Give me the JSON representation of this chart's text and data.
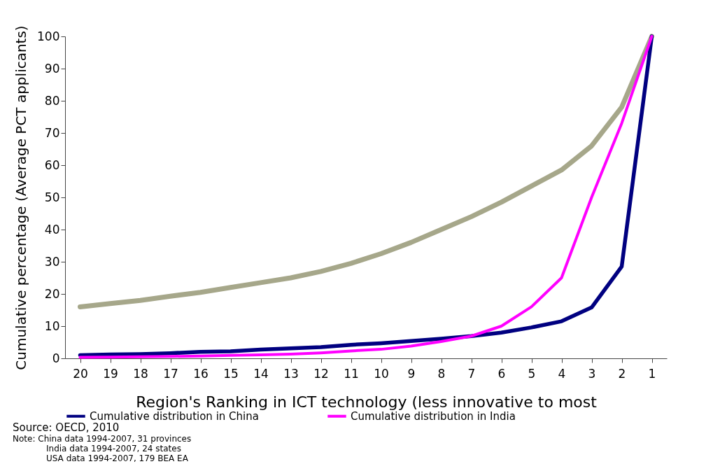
{
  "chart_data": {
    "type": "line",
    "ylabel": "Cumulative percentage (Average PCT applicants)",
    "xlabel": "Region's Ranking in ICT technology (less innovative to most",
    "categories": [
      "20",
      "19",
      "18",
      "17",
      "16",
      "15",
      "14",
      "13",
      "12",
      "11",
      "10",
      "9",
      "8",
      "7",
      "6",
      "5",
      "4",
      "3",
      "2",
      "1"
    ],
    "series": [
      {
        "color": "#a6a78a",
        "values": [
          16,
          17,
          18,
          19.3,
          20.5,
          22,
          23.5,
          25,
          27,
          29.5,
          32.5,
          36,
          40,
          44,
          48.5,
          53.5,
          58.5,
          66,
          78,
          100
        ]
      },
      {
        "name": "Cumulative distribution in China",
        "color": "#000080",
        "values": [
          1,
          1.2,
          1.3,
          1.6,
          2,
          2.2,
          2.7,
          3.1,
          3.5,
          4.2,
          4.7,
          5.4,
          6.1,
          6.9,
          8,
          9.6,
          11.5,
          15.8,
          28.5,
          100
        ]
      },
      {
        "name": "Cumulative distribution in India",
        "color": "#ff00ff",
        "values": [
          0.3,
          0.4,
          0.5,
          0.6,
          0.7,
          0.9,
          1.1,
          1.3,
          1.7,
          2.3,
          2.8,
          3.8,
          5.2,
          6.9,
          10,
          16,
          25,
          50,
          73,
          100
        ]
      }
    ],
    "ylim": [
      0,
      100
    ],
    "yticks": [
      0,
      10,
      20,
      30,
      40,
      50,
      60,
      70,
      80,
      90,
      100
    ],
    "grid": false,
    "legend": "bottom",
    "annotations": [
      "Source: OECD, 2010",
      "Note: China data 1994-2007, 31 provinces",
      "India data 1994-2007, 24 states",
      "USA  data 1994-2007, 179 BEA EA"
    ]
  }
}
